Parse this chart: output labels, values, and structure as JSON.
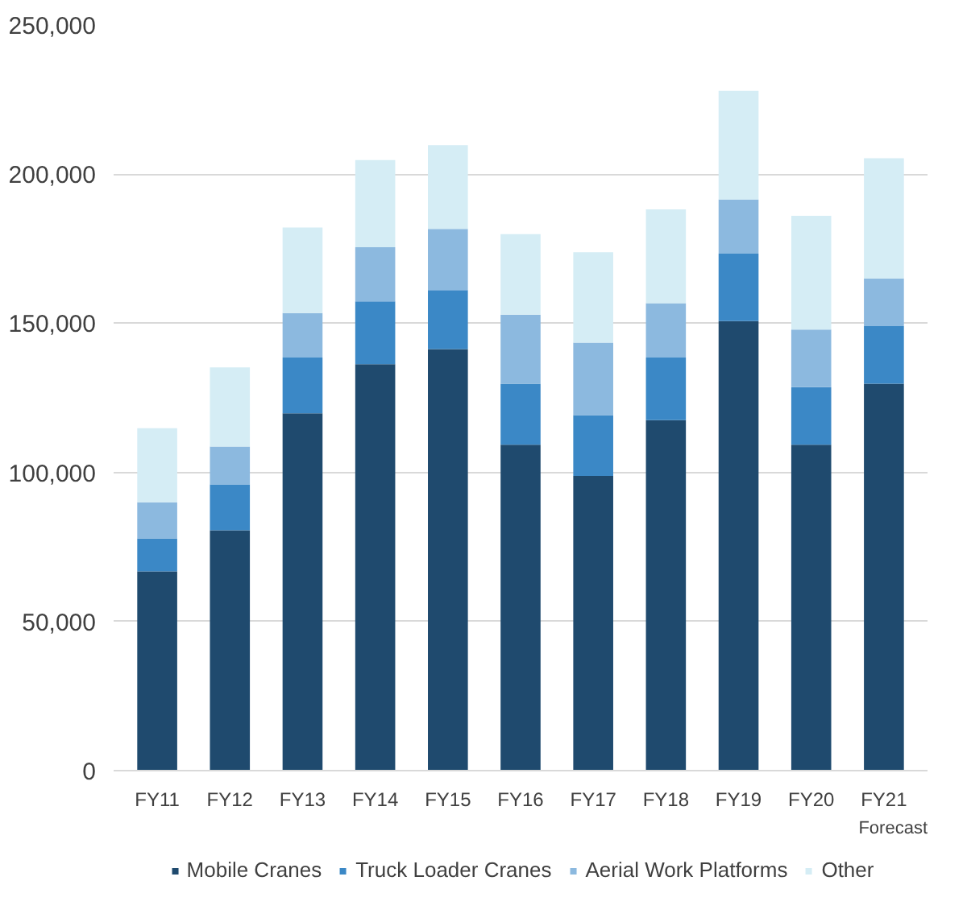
{
  "chart_data": {
    "type": "bar",
    "stacked": true,
    "categories": [
      "FY11",
      "FY12",
      "FY13",
      "FY14",
      "FY15",
      "FY16",
      "FY17",
      "FY18",
      "FY19",
      "FY20",
      "FY21"
    ],
    "series": [
      {
        "name": "Mobile Cranes",
        "color": "#1f4a6e",
        "values": [
          66800,
          80600,
          119800,
          136300,
          141300,
          109300,
          98800,
          117500,
          150700,
          109300,
          129700
        ]
      },
      {
        "name": "Truck Loader Cranes",
        "color": "#3b88c6",
        "values": [
          11000,
          15400,
          18700,
          21000,
          19800,
          20400,
          20400,
          21000,
          22600,
          19300,
          19300
        ]
      },
      {
        "name": "Aerial Work Platforms",
        "color": "#8cb9df",
        "values": [
          12200,
          12700,
          14900,
          18200,
          20500,
          23200,
          24300,
          18200,
          18200,
          19300,
          16000
        ]
      },
      {
        "name": "Other",
        "color": "#d5edf5",
        "values": [
          24800,
          26500,
          28700,
          29200,
          28100,
          27000,
          30300,
          31500,
          36400,
          38100,
          40300
        ]
      }
    ],
    "ylim": [
      0,
      250000
    ],
    "yticks": [
      {
        "value": 0,
        "label": "0"
      },
      {
        "value": 50000,
        "label": "50,000"
      },
      {
        "value": 100000,
        "label": "100,000"
      },
      {
        "value": 150000,
        "label": "150,000"
      },
      {
        "value": 200000,
        "label": "200,000"
      },
      {
        "value": 250000,
        "label": "250,000"
      }
    ],
    "grid": "y",
    "legend": "bottom",
    "annotations": [
      "Forecast"
    ]
  }
}
